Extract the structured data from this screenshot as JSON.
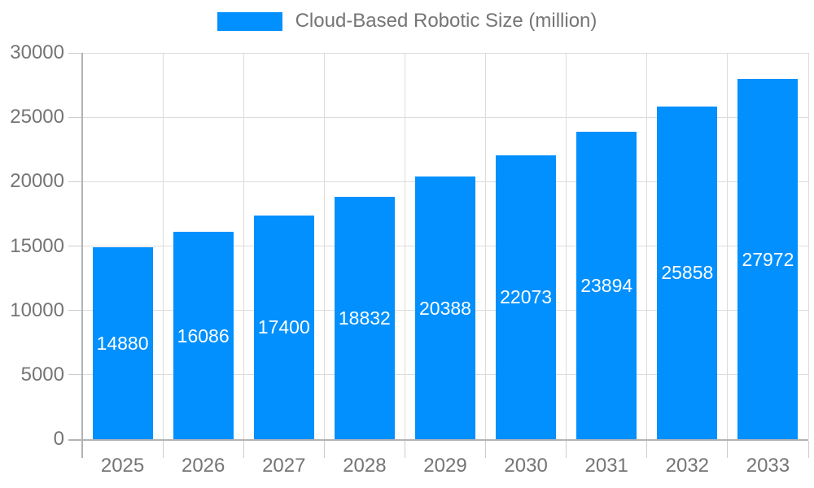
{
  "chart_data": {
    "type": "bar",
    "title": "",
    "legend": {
      "label": "Cloud-Based Robotic Size (million)",
      "position": "top-center"
    },
    "categories": [
      "2025",
      "2026",
      "2027",
      "2028",
      "2029",
      "2030",
      "2031",
      "2032",
      "2033"
    ],
    "series": [
      {
        "name": "Cloud-Based Robotic Size (million)",
        "values": [
          14880,
          16086,
          17400,
          18832,
          20388,
          22073,
          23894,
          25858,
          27972
        ]
      }
    ],
    "xlabel": "",
    "ylabel": "",
    "ylim": [
      0,
      30000
    ],
    "yticks": [
      0,
      5000,
      10000,
      15000,
      20000,
      25000,
      30000
    ],
    "grid": {
      "horizontal": true,
      "vertical": true
    },
    "value_labels": "inside-center-white",
    "colors": {
      "bar": "#0190fe",
      "value_label": "#ffffff",
      "axis_label": "#757575",
      "legend_label": "#757575",
      "gridline": "#dcdcdc",
      "axis_line": "#b3b3b3",
      "tick": "#cccccc",
      "background": "#ffffff"
    }
  }
}
